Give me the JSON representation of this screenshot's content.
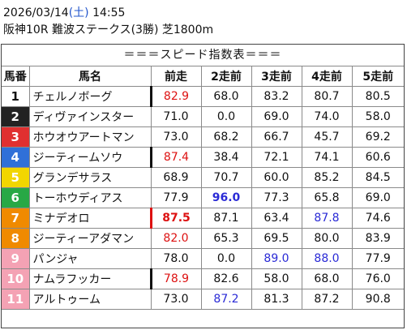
{
  "header": {
    "date": "2026/03/14",
    "weekday": "(土)",
    "time": "14:55",
    "race": "阪神10R 難波ステークス(3勝) 芝1800m"
  },
  "table_title": "＝＝＝スピード指数表＝＝＝",
  "columns": [
    "馬番",
    "馬名",
    "前走",
    "2走前",
    "3走前",
    "4走前",
    "5走前"
  ],
  "colors": {
    "frame1": "#ffffff",
    "frame2": "#222222",
    "frame3": "#e03030",
    "frame4": "#3070d8",
    "frame5": "#f2d600",
    "frame6": "#28a845",
    "frame7": "#f08a00",
    "frame8": "#f4a2b4",
    "red_text": "#dd1111",
    "blue_text": "#2a2ad6"
  },
  "rows": [
    {
      "num": "1",
      "name": "チェルノボーグ",
      "v": [
        "82.9",
        "68.0",
        "83.2",
        "80.7",
        "80.5"
      ]
    },
    {
      "num": "2",
      "name": "ディヴァインスター",
      "v": [
        "71.0",
        "0.0",
        "69.0",
        "74.0",
        "58.0"
      ]
    },
    {
      "num": "3",
      "name": "ホウオウアートマン",
      "v": [
        "73.0",
        "68.2",
        "66.7",
        "45.7",
        "69.2"
      ]
    },
    {
      "num": "4",
      "name": "ジーティームソウ",
      "v": [
        "87.4",
        "38.4",
        "72.1",
        "74.1",
        "60.6"
      ]
    },
    {
      "num": "5",
      "name": "グランデサラス",
      "v": [
        "68.9",
        "70.7",
        "60.0",
        "85.2",
        "84.5"
      ]
    },
    {
      "num": "6",
      "name": "トーホウディアス",
      "v": [
        "77.9",
        "96.0",
        "77.3",
        "65.8",
        "69.0"
      ]
    },
    {
      "num": "7",
      "name": "ミナデオロ",
      "v": [
        "87.5",
        "87.1",
        "63.4",
        "87.8",
        "74.6"
      ]
    },
    {
      "num": "8",
      "name": "ジーティーアダマン",
      "v": [
        "82.0",
        "65.3",
        "69.5",
        "80.0",
        "83.9"
      ]
    },
    {
      "num": "9",
      "name": "パンジャ",
      "v": [
        "78.0",
        "0.0",
        "89.0",
        "88.0",
        "77.9"
      ]
    },
    {
      "num": "10",
      "name": "ナムラフッカー",
      "v": [
        "78.9",
        "82.6",
        "58.0",
        "68.0",
        "76.0"
      ]
    },
    {
      "num": "11",
      "name": "アルトゥーム",
      "v": [
        "73.0",
        "87.2",
        "81.3",
        "87.2",
        "90.8"
      ]
    }
  ]
}
